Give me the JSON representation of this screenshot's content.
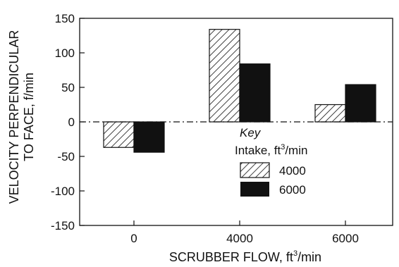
{
  "chart_data": {
    "type": "bar",
    "title": "",
    "xlabel": {
      "main": "SCRUBBER FLOW, ft",
      "sup": "3",
      "tail": "/min"
    },
    "ylabel": [
      "VELOCITY PERPENDICULAR",
      "TO FACE, f/min"
    ],
    "categories": [
      "0",
      "4000",
      "6000"
    ],
    "ylim": [
      -150,
      150
    ],
    "yticks": [
      150,
      100,
      50,
      0,
      -50,
      -100,
      -150
    ],
    "zero_line": "dash-dot",
    "legend": {
      "title": "Key",
      "subtitle": {
        "main": "Intake, ft",
        "sup": "3",
        "tail": "/min"
      },
      "placement": "inside-right"
    },
    "series": [
      {
        "name": "4000",
        "values": [
          -37,
          134,
          25
        ],
        "pattern": "hatched"
      },
      {
        "name": "6000",
        "values": [
          -44,
          84,
          54
        ],
        "pattern": "solid",
        "color": "#111111"
      }
    ]
  }
}
